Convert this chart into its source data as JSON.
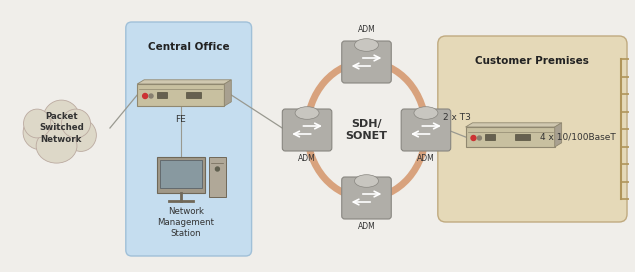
{
  "bg_color": "#f0eeea",
  "cloud_text": "Packet\nSwitched\nNetwork",
  "central_office_label": "Central Office",
  "customer_premises_label": "Customer Premises",
  "fe_label": "FE",
  "sdh_sonet_label": "SDH/\nSONET",
  "two_t3_label": "2 x T3",
  "four_eth_label": "4 x 10/100BaseT",
  "nms_label": "Network\nManagement\nStation",
  "adm_label": "ADM",
  "central_box_color": "#c5ddef",
  "central_box_edge": "#a0c0d8",
  "customer_box_color": "#e5d9b8",
  "customer_box_edge": "#c0aa80",
  "ring_color": "#d4956a",
  "line_color": "#999990",
  "text_color": "#333333",
  "label_color": "#222222",
  "device_color": "#c0b898",
  "device_edge": "#908870",
  "adm_body_color": "#b0aea8",
  "adm_edge_color": "#888680"
}
